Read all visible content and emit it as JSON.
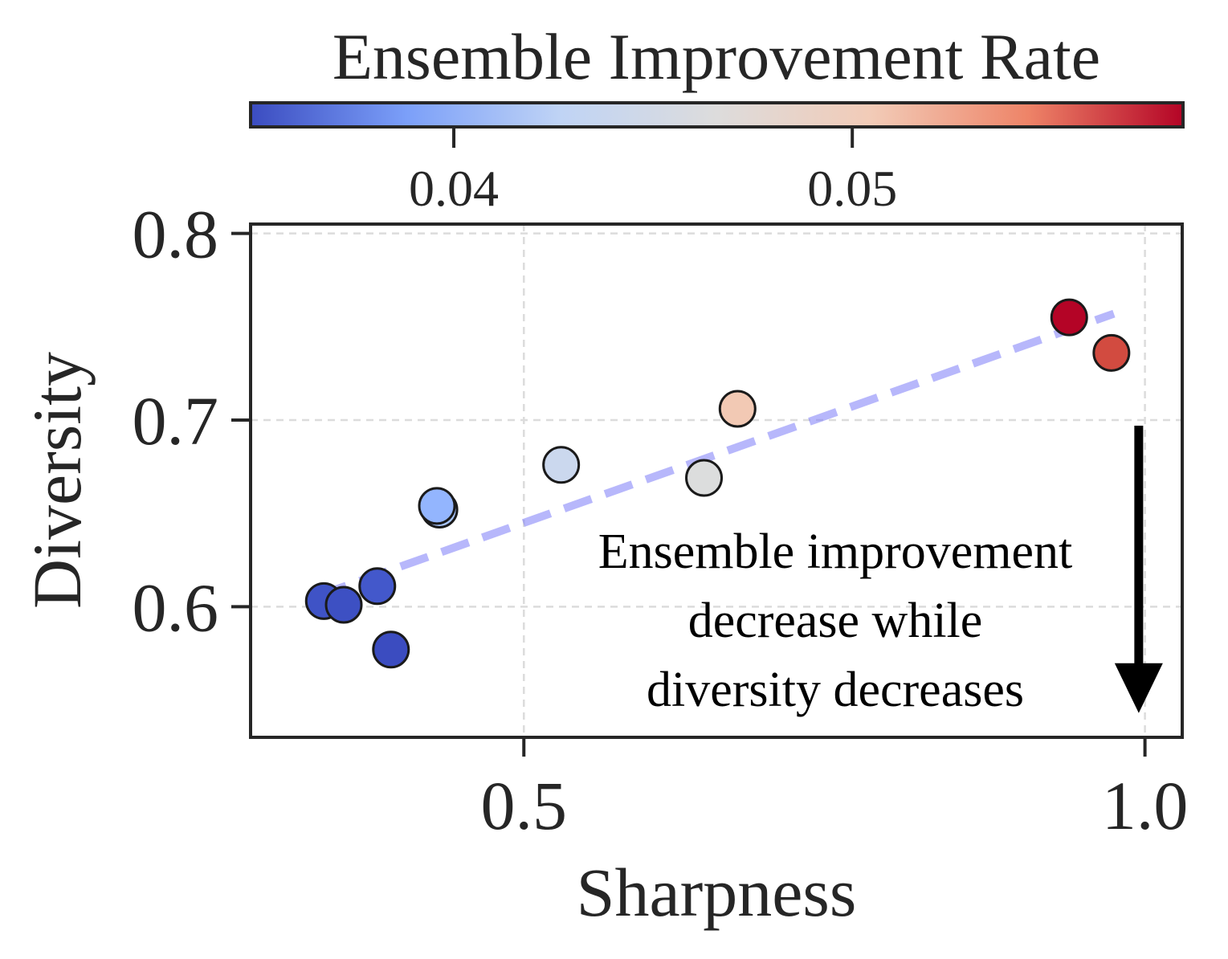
{
  "chart_data": {
    "type": "scatter",
    "xlabel": "Sharpness",
    "ylabel": "Diversity",
    "xlim": [
      0.28,
      1.03
    ],
    "ylim": [
      0.53,
      0.805
    ],
    "x_ticks": [
      0.5,
      1.0
    ],
    "x_tick_labels": [
      "0.5",
      "1.0"
    ],
    "y_ticks": [
      0.6,
      0.7,
      0.8
    ],
    "y_tick_labels": [
      "0.6",
      "0.7",
      "0.8"
    ],
    "grid": true,
    "colorbar": {
      "title": "Ensemble Improvement Rate",
      "colormap": "coolwarm",
      "range": [
        0.0349,
        0.0583
      ],
      "ticks": [
        0.04,
        0.05
      ],
      "tick_labels": [
        "0.04",
        "0.05"
      ],
      "colors": [
        "#3b4cc0",
        "#7b9ff9",
        "#c0d4f5",
        "#dddcdc",
        "#f2cbb7",
        "#ee8468",
        "#b40426"
      ]
    },
    "points": [
      {
        "x": 0.339,
        "y": 0.603,
        "value": 0.0364,
        "color": "#3f53c6"
      },
      {
        "x": 0.355,
        "y": 0.601,
        "value": 0.0362,
        "color": "#3d50c3"
      },
      {
        "x": 0.382,
        "y": 0.611,
        "value": 0.0369,
        "color": "#4358cb"
      },
      {
        "x": 0.393,
        "y": 0.577,
        "value": 0.0352,
        "color": "#3b4cc0"
      },
      {
        "x": 0.432,
        "y": 0.652,
        "value": 0.0415,
        "color": "#a8c5fc"
      },
      {
        "x": 0.43,
        "y": 0.654,
        "value": 0.0405,
        "color": "#93b5fe"
      },
      {
        "x": 0.53,
        "y": 0.676,
        "value": 0.0445,
        "color": "#cbd8ee"
      },
      {
        "x": 0.645,
        "y": 0.669,
        "value": 0.0461,
        "color": "#dcdddd"
      },
      {
        "x": 0.672,
        "y": 0.706,
        "value": 0.0498,
        "color": "#f2c9b4"
      },
      {
        "x": 0.939,
        "y": 0.755,
        "value": 0.058,
        "color": "#b40426"
      },
      {
        "x": 0.973,
        "y": 0.736,
        "value": 0.0556,
        "color": "#d24b40"
      }
    ],
    "trend_line": {
      "x": [
        0.335,
        0.975
      ],
      "y": [
        0.606,
        0.757
      ],
      "color": "#7b7bf7",
      "style": "dashed"
    },
    "annotation": {
      "lines": [
        "Ensemble improvement",
        "decrease while",
        "diversity decreases"
      ],
      "arrow": {
        "x": 0.995,
        "y_from": 0.697,
        "y_to": 0.543
      }
    }
  }
}
